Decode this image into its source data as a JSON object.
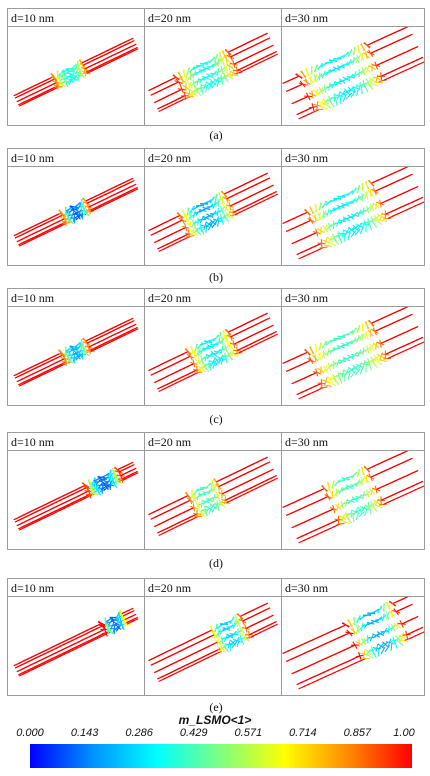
{
  "panels": [
    {
      "caption": "(a)",
      "labels": [
        "d=10 nm",
        "d=20 nm",
        "d=30 nm"
      ]
    },
    {
      "caption": "(b)",
      "labels": [
        "d=10 nm",
        "d=20 nm",
        "d=30 nm"
      ]
    },
    {
      "caption": "(c)",
      "labels": [
        "d=10 nm",
        "d=20 nm",
        "d=30 nm"
      ]
    },
    {
      "caption": "(d)",
      "labels": [
        "d=10 nm",
        "d=20 nm",
        "d=30 nm"
      ]
    },
    {
      "caption": "(e)",
      "labels": [
        "d=10 nm",
        "d=20 nm",
        "d=30 nm"
      ]
    }
  ],
  "colorbar": {
    "title": "m_LSMO<1>",
    "ticks": [
      "0.000",
      "0.143",
      "0.286",
      "0.429",
      "0.571",
      "0.714",
      "0.857",
      "1.00"
    ],
    "colors": [
      "#0000ff",
      "#0094ff",
      "#00ffff",
      "#7fff7f",
      "#ffff00",
      "#ff8a00",
      "#ff0000"
    ]
  }
}
